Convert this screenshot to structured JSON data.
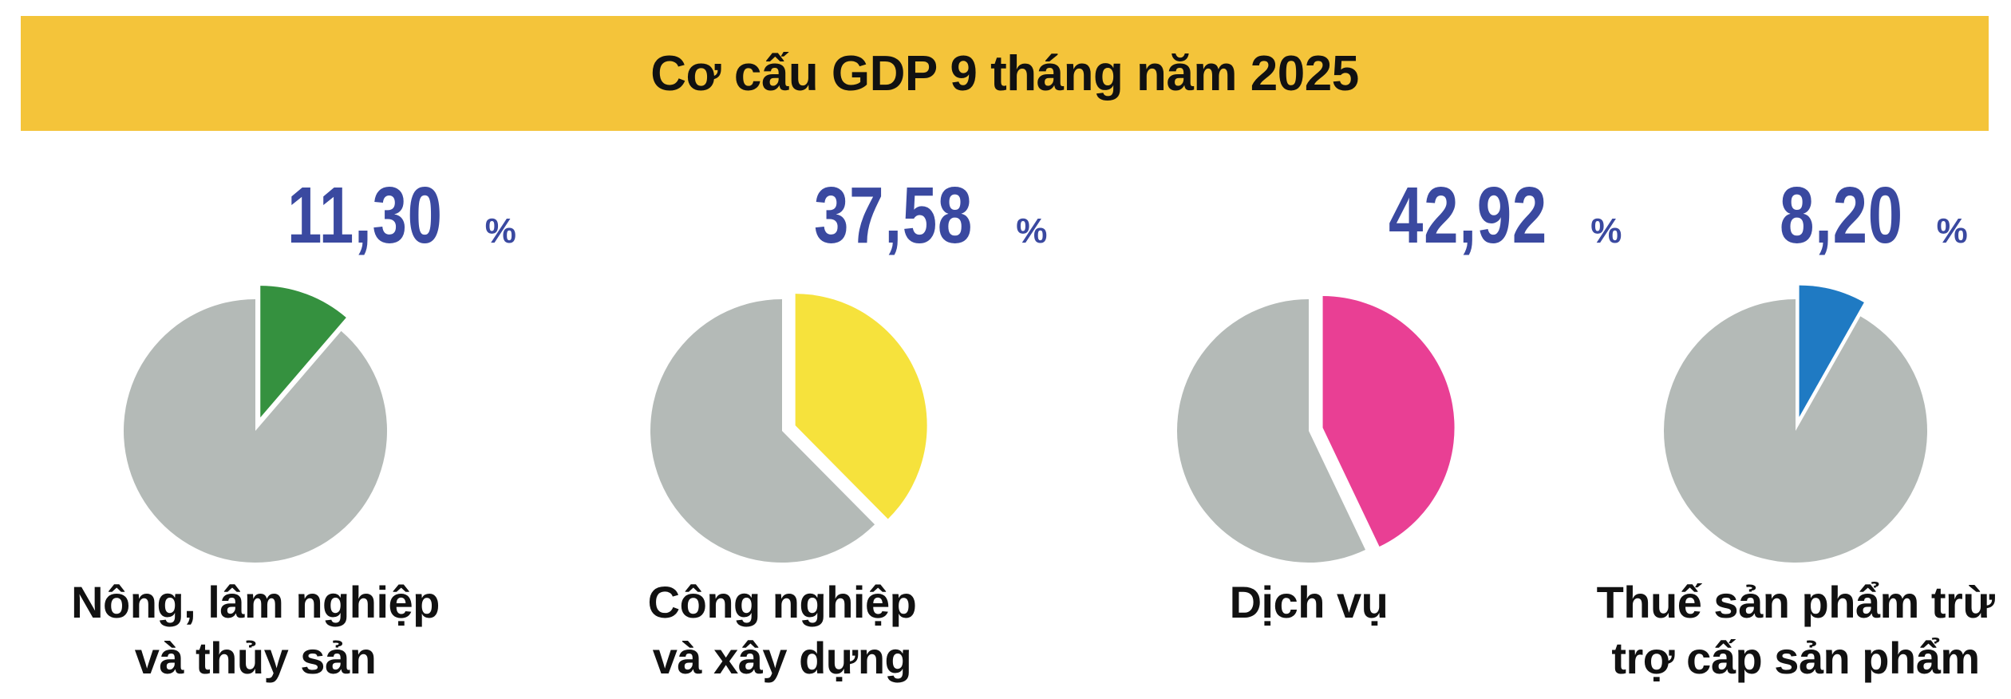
{
  "title": "Cơ cấu GDP 9 tháng năm 2025",
  "colors": {
    "banner": "#f4c43a",
    "remainder": "#b4bab7",
    "value_text": "#3a49a0"
  },
  "chart_data": {
    "type": "pie",
    "title": "Cơ cấu GDP 9 tháng năm 2025",
    "unit": "%",
    "slices": [
      {
        "label_lines": [
          "Nông, lâm nghiệp",
          "và thủy sản"
        ],
        "value": 11.3,
        "display": "11,30",
        "color": "#35913f"
      },
      {
        "label_lines": [
          "Công nghiệp",
          "và xây dựng"
        ],
        "value": 37.58,
        "display": "37,58",
        "color": "#f6e23c"
      },
      {
        "label_lines": [
          "Dịch vụ"
        ],
        "value": 42.92,
        "display": "42,92",
        "color": "#e93f94"
      },
      {
        "label_lines": [
          "Thuế sản phẩm trừ",
          "trợ cấp sản phẩm"
        ],
        "value": 8.2,
        "display": "8,20",
        "color": "#1f7ac3"
      }
    ]
  }
}
